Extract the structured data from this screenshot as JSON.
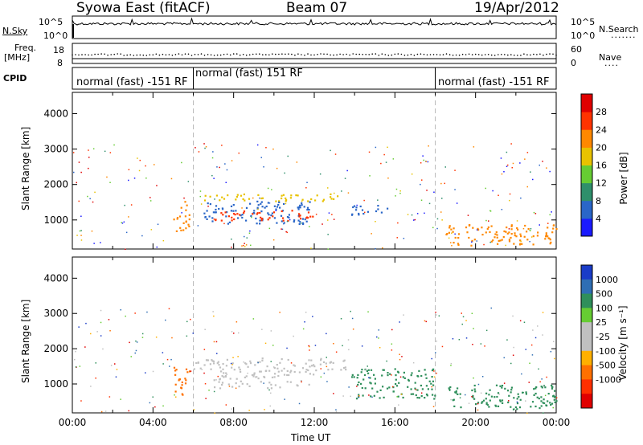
{
  "header": {
    "radar": "Syowa East (fitACF)",
    "beam": "Beam 07",
    "date": "19/Apr/2012"
  },
  "top_panels": {
    "nsky_label": "N.Sky",
    "nsky_ticks": [
      "10^5",
      "10^0"
    ],
    "nsearch_label": "N.Search",
    "nsearch_ticks": [
      "10^5",
      "10^0"
    ],
    "freq_label_1": "Freq.",
    "freq_label_2": "[MHz]",
    "freq_ticks": [
      "18",
      "8"
    ],
    "nave_label": "Nave",
    "nave_ticks": [
      "60",
      "0"
    ],
    "cpid_label": "CPID",
    "cpid_segments": [
      {
        "label": "normal (fast) -151 RF",
        "start_hour": 0,
        "end_hour": 6
      },
      {
        "label": "normal (fast) 151 RF",
        "start_hour": 6,
        "end_hour": 18
      },
      {
        "label": "normal (fast) -151 RF",
        "start_hour": 18,
        "end_hour": 24
      }
    ]
  },
  "chart_data": [
    {
      "type": "heatmap",
      "name": "power",
      "ylabel": "Slant Range [km]",
      "xlabel": "",
      "ylim": [
        180,
        4600
      ],
      "yticks": [
        "1000",
        "2000",
        "3000",
        "4000"
      ],
      "xlim": [
        0,
        24
      ],
      "colorbar_label": "Power [dB]",
      "colorbar_ticks": [
        "4",
        "8",
        "12",
        "16",
        "20",
        "24",
        "28"
      ],
      "colorbar_colors": [
        "#1a1aff",
        "#2a66c8",
        "#2f8f6b",
        "#66cc33",
        "#e8c200",
        "#ff8800",
        "#ff3300",
        "#e00000"
      ],
      "echo_regions": [
        {
          "t0": 5.0,
          "t1": 5.8,
          "r0": 700,
          "r1": 1600,
          "c": "#ff8800"
        },
        {
          "t0": 6.0,
          "t1": 13.6,
          "r0": 1550,
          "r1": 1750,
          "c": "#e8c200"
        },
        {
          "t0": 6.5,
          "t1": 11.8,
          "r0": 900,
          "r1": 1550,
          "c": "#2a66c8"
        },
        {
          "t0": 7.0,
          "t1": 12.0,
          "r0": 1000,
          "r1": 1300,
          "c": "#ff3300"
        },
        {
          "t0": 13.8,
          "t1": 15.8,
          "r0": 1150,
          "r1": 1450,
          "c": "#2a66c8"
        },
        {
          "t0": 18.5,
          "t1": 24.0,
          "r0": 300,
          "r1": 900,
          "c": "#ff8800"
        }
      ]
    },
    {
      "type": "heatmap",
      "name": "velocity",
      "ylabel": "Slant Range [km]",
      "xlabel": "Time UT",
      "ylim": [
        180,
        4600
      ],
      "yticks": [
        "1000",
        "2000",
        "3000",
        "4000"
      ],
      "xlim": [
        0,
        24
      ],
      "xticks": [
        "00:00",
        "04:00",
        "08:00",
        "12:00",
        "16:00",
        "20:00",
        "00:00"
      ],
      "colorbar_label": "Velocity [m s⁻¹]",
      "colorbar_ticks": [
        "1000",
        "500",
        "100",
        "25",
        "-25",
        "-100",
        "-500",
        "-1000"
      ],
      "colorbar_colors": [
        "#1a3cc8",
        "#2f6eb4",
        "#2f8f5b",
        "#66cc33",
        "#c0c0c0",
        "#c0c0c0",
        "#ffb000",
        "#ff7000",
        "#ff3000",
        "#e00000"
      ],
      "echo_regions": [
        {
          "t0": 5.0,
          "t1": 5.8,
          "r0": 700,
          "r1": 1600,
          "c": "#ff7000"
        },
        {
          "t0": 6.0,
          "t1": 13.6,
          "r0": 1400,
          "r1": 1750,
          "c": "#c0c0c0"
        },
        {
          "t0": 7.0,
          "t1": 12.0,
          "r0": 900,
          "r1": 1400,
          "c": "#c0c0c0"
        },
        {
          "t0": 13.8,
          "t1": 18.0,
          "r0": 600,
          "r1": 1450,
          "c": "#2f8f5b"
        },
        {
          "t0": 18.5,
          "t1": 24.0,
          "r0": 300,
          "r1": 1000,
          "c": "#2f8f5b"
        }
      ]
    }
  ]
}
